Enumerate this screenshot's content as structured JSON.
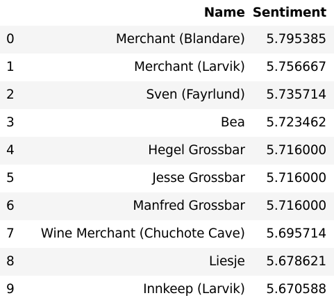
{
  "table": {
    "columns": [
      "",
      "Name",
      "Sentiment"
    ],
    "rows": [
      {
        "index": "0",
        "name": "Merchant (Blandare)",
        "sentiment": "5.795385"
      },
      {
        "index": "1",
        "name": "Merchant (Larvik)",
        "sentiment": "5.756667"
      },
      {
        "index": "2",
        "name": "Sven (Fayrlund)",
        "sentiment": "5.735714"
      },
      {
        "index": "3",
        "name": "Bea",
        "sentiment": "5.723462"
      },
      {
        "index": "4",
        "name": "Hegel Grossbar",
        "sentiment": "5.716000"
      },
      {
        "index": "5",
        "name": "Jesse Grossbar",
        "sentiment": "5.716000"
      },
      {
        "index": "6",
        "name": "Manfred Grossbar",
        "sentiment": "5.716000"
      },
      {
        "index": "7",
        "name": "Wine Merchant (Chuchote Cave)",
        "sentiment": "5.695714"
      },
      {
        "index": "8",
        "name": "Liesje",
        "sentiment": "5.678621"
      },
      {
        "index": "9",
        "name": "Innkeep (Larvik)",
        "sentiment": "5.670588"
      }
    ]
  }
}
